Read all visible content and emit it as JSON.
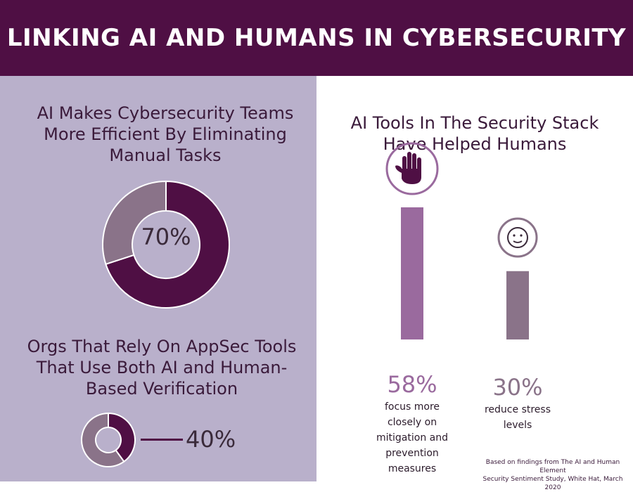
{
  "header": {
    "title": "LINKING AI AND HUMANS IN CYBERSECURITY"
  },
  "left": {
    "section1": {
      "title_lines": [
        "AI Makes Cybersecurity Teams",
        "More Efficient By Eliminating",
        "Manual Tasks"
      ],
      "value_label": "70%"
    },
    "section2": {
      "title_lines": [
        "Orgs That Rely On AppSec Tools",
        "That Use Both AI and Human-",
        "Based Verification"
      ],
      "value_label": "40%"
    }
  },
  "right": {
    "title_lines": [
      "AI Tools In The Security Stack",
      "Have Helped Humans"
    ],
    "bars": [
      {
        "value_label": "58%",
        "desc_lines": [
          "focus more",
          "closely on",
          "mitigation and",
          "prevention",
          "measures"
        ],
        "icon": "hand-icon"
      },
      {
        "value_label": "30%",
        "desc_lines": [
          "reduce stress",
          "levels"
        ],
        "icon": "smiley-icon"
      }
    ],
    "source_lines": [
      "Based on findings from The AI and Human Element",
      "Security Sentiment Study, White Hat, March 2020"
    ]
  },
  "colors": {
    "header_bg": "#4f0f44",
    "left_bg": "#b9b0cb",
    "dark_purple": "#4f0f44",
    "donut_rest": "#8a7389",
    "bar_58": "#9a6a9e",
    "bar_30": "#8a7389",
    "text": "#3a1a3a"
  },
  "chart_data": [
    {
      "type": "pie",
      "title": "AI Makes Cybersecurity Teams More Efficient By Eliminating Manual Tasks",
      "categories": [
        "",
        ""
      ],
      "values": [
        70,
        30
      ]
    },
    {
      "type": "pie",
      "title": "Orgs That Rely On AppSec Tools That Use Both AI and Human-Based Verification",
      "categories": [
        "",
        ""
      ],
      "values": [
        40,
        60
      ]
    },
    {
      "type": "bar",
      "title": "AI Tools In The Security Stack Have Helped Humans",
      "categories": [
        "focus more closely on mitigation and prevention measures",
        "reduce stress levels"
      ],
      "values": [
        58,
        30
      ]
    }
  ]
}
